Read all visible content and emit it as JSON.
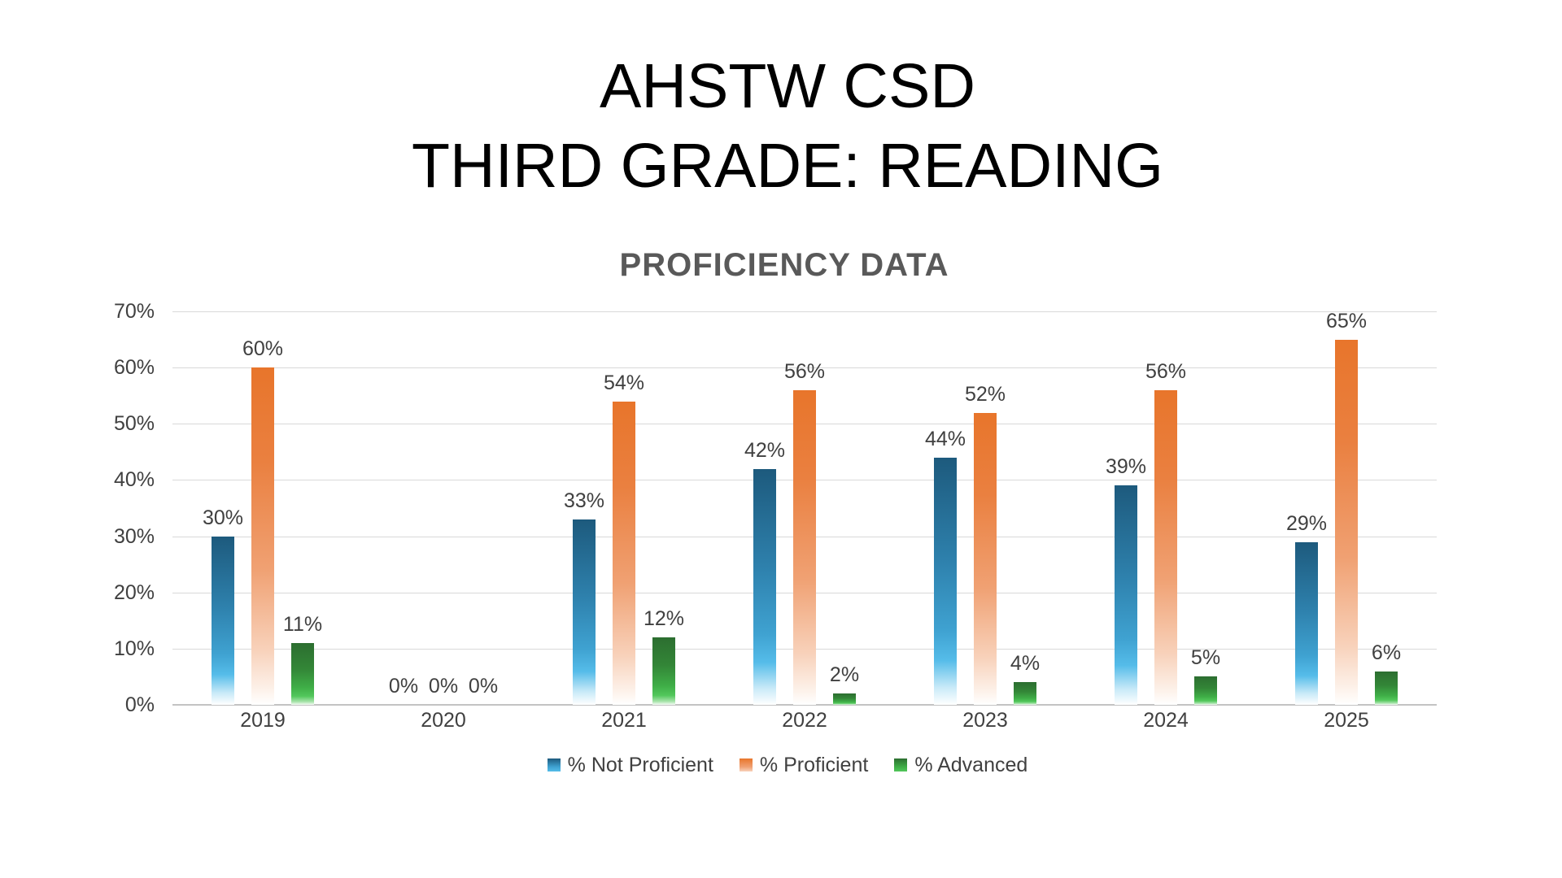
{
  "page": {
    "background": "#ffffff"
  },
  "title": {
    "line1": "AHSTW CSD",
    "line2": "THIRD GRADE: READING",
    "color": "#000000"
  },
  "chart_data": {
    "type": "bar",
    "title": "PROFICIENCY DATA",
    "title_color": "#595959",
    "categories": [
      "2019",
      "2020",
      "2021",
      "2022",
      "2023",
      "2024",
      "2025"
    ],
    "series": [
      {
        "key": "not-proficient",
        "name": "% Not Proficient",
        "color": "#2e81ad",
        "gradient": [
          [
            0,
            "#1d5a7d"
          ],
          [
            0.42,
            "#2e81ad"
          ],
          [
            0.7,
            "#3fa2d1"
          ],
          [
            0.82,
            "#55bce9"
          ],
          [
            0.93,
            "#c9eaf8"
          ],
          [
            1,
            "#ffffff"
          ]
        ],
        "values": [
          30,
          0,
          33,
          42,
          44,
          39,
          29
        ]
      },
      {
        "key": "proficient",
        "name": "% Proficient",
        "color": "#e8752b",
        "gradient": [
          [
            0,
            "#e8752b"
          ],
          [
            0.28,
            "#ea8040"
          ],
          [
            0.6,
            "#f0a173"
          ],
          [
            0.84,
            "#f8d2bb"
          ],
          [
            0.96,
            "#fdf3ec"
          ],
          [
            1,
            "#ffffff"
          ]
        ],
        "values": [
          60,
          0,
          54,
          56,
          52,
          56,
          65
        ]
      },
      {
        "key": "advanced",
        "name": "% Advanced",
        "color": "#3fae47",
        "gradient": [
          [
            0,
            "#2c6e30"
          ],
          [
            0.42,
            "#338637"
          ],
          [
            0.72,
            "#3fae47"
          ],
          [
            0.86,
            "#52c75b"
          ],
          [
            0.95,
            "#a8e3ab"
          ],
          [
            1,
            "#f6fcf6"
          ]
        ],
        "values": [
          11,
          0,
          12,
          2,
          4,
          5,
          6
        ]
      }
    ],
    "xlabel": "",
    "ylabel": "",
    "ylim": [
      0,
      70
    ],
    "ytick_step": 10,
    "ytick_labels": [
      "70%",
      "60%",
      "50%",
      "40%",
      "30%",
      "20%",
      "10%",
      "0%"
    ],
    "data_labels": true,
    "data_label_suffix": "%",
    "data_label_color": "#404040",
    "tick_label_color": "#404040",
    "grid": true,
    "gridline_color": "#d9d9d9",
    "axis_line_color": "#c3c3c3",
    "legend_position": "bottom"
  }
}
